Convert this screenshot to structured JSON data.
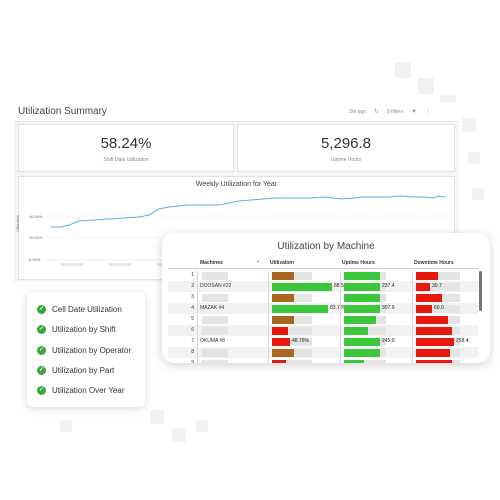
{
  "dashboard": {
    "title": "Utilization Summary",
    "meta_time": "2m ago",
    "meta_filters": "9 filters",
    "kpis": [
      {
        "value": "58.24%",
        "label": "Shift Date Utilization"
      },
      {
        "value": "5,296.8",
        "label": "Uptime Hours"
      }
    ],
    "line_chart": {
      "title": "Weekly Utilization for Year",
      "ylabel": "Utilization",
      "ticks": [
        "40.00%",
        "20.00%",
        "0.00%"
      ]
    }
  },
  "machine_table": {
    "title": "Utilization by Machine",
    "headers": {
      "machines": "Machines",
      "utilization": "Utilization",
      "uptime": "Uptime Hours",
      "downtime": "Downtime Hours"
    },
    "rows": [
      {
        "n": "1",
        "machine": "",
        "util_label": "",
        "uptime_label": "",
        "downtime_label": ""
      },
      {
        "n": "2",
        "machine": "DOOSAN #22",
        "util_label": "88.54%",
        "uptime_label": "237.4",
        "downtime_label": "30.7"
      },
      {
        "n": "3",
        "machine": "",
        "util_label": "",
        "uptime_label": "",
        "downtime_label": ""
      },
      {
        "n": "4",
        "machine": "MAZAK #4",
        "util_label": "83.70%",
        "uptime_label": "307.9",
        "downtime_label": "60.0"
      },
      {
        "n": "5",
        "machine": "",
        "util_label": "",
        "uptime_label": "",
        "downtime_label": ""
      },
      {
        "n": "6",
        "machine": "",
        "util_label": "",
        "uptime_label": "",
        "downtime_label": ""
      },
      {
        "n": "7",
        "machine": "OKUMA #8",
        "util_label": "48.76%",
        "uptime_label": "245.9",
        "downtime_label": "258.4"
      },
      {
        "n": "8",
        "machine": "",
        "util_label": "",
        "uptime_label": "",
        "downtime_label": ""
      },
      {
        "n": "9",
        "machine": "",
        "util_label": "",
        "uptime_label": "",
        "downtime_label": ""
      }
    ]
  },
  "report_list": {
    "items": [
      "Cell Date Utilization",
      "Utilization by Shift",
      "Utilization by Operator",
      "Utilization by Part",
      "Utilization Over Year"
    ]
  },
  "colors": {
    "green": "#3cc63c",
    "red": "#e8190c",
    "brown": "#a9661f",
    "line": "#5aaede",
    "check": "#3aa53a"
  }
}
